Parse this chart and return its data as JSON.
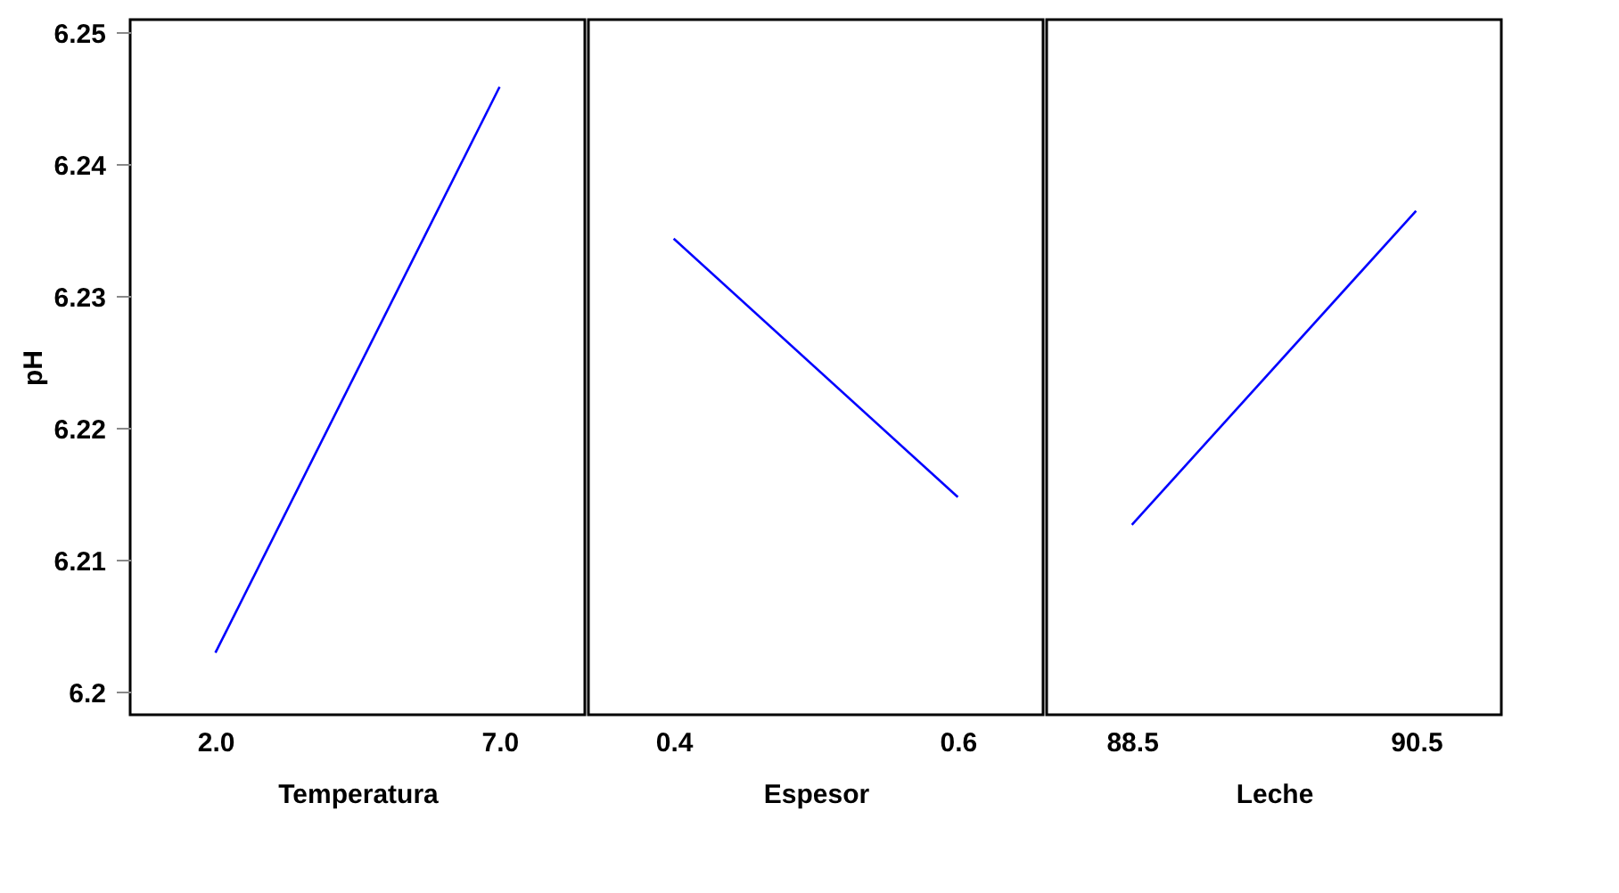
{
  "chart_data": [
    {
      "type": "line",
      "categories": [
        "2.0",
        "7.0"
      ],
      "values": [
        6.203,
        6.2459
      ],
      "color": "#0000ff",
      "xlabel": "Temperatura",
      "ylabel": "pH",
      "ylim": [
        6.1983,
        6.251
      ],
      "yticks": [
        6.2,
        6.21,
        6.22,
        6.23,
        6.24,
        6.25
      ],
      "grid": false
    },
    {
      "type": "line",
      "categories": [
        "0.4",
        "0.6"
      ],
      "values": [
        6.2344,
        6.2148
      ],
      "color": "#0000ff",
      "xlabel": "Espesor",
      "ylim": [
        6.1983,
        6.251
      ],
      "yticks": [
        6.2,
        6.21,
        6.22,
        6.23,
        6.24,
        6.25
      ],
      "grid": false,
      "tick_labels": "x"
    },
    {
      "type": "line",
      "categories": [
        "88.5",
        "90.5"
      ],
      "values": [
        6.2127,
        6.2365
      ],
      "color": "#0000ff",
      "xlabel": "Leche",
      "ylim": [
        6.1983,
        6.251
      ],
      "yticks": [
        6.2,
        6.21,
        6.22,
        6.23,
        6.24,
        6.25
      ],
      "grid": false,
      "tick_labels": "x"
    }
  ]
}
